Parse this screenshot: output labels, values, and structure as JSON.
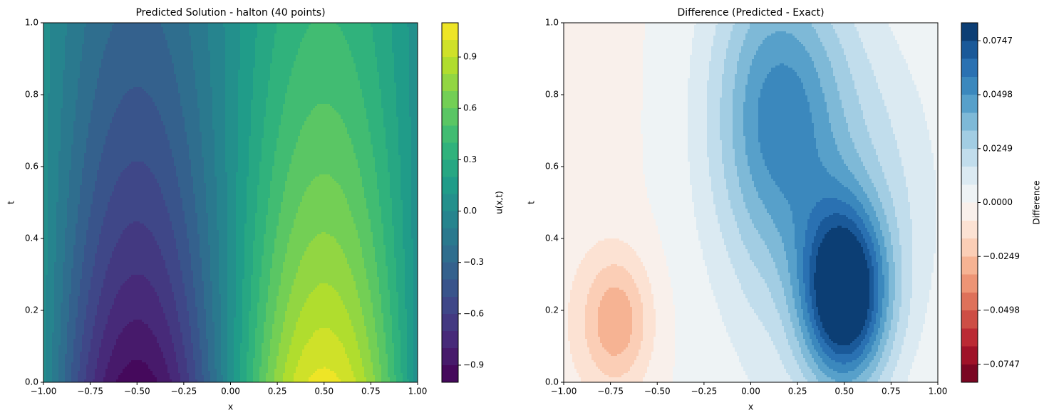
{
  "chart_data": [
    {
      "type": "contourf",
      "title": "Predicted Solution - halton (40 points)",
      "xlabel": "x",
      "ylabel": "t",
      "colorbar_label": "u(x,t)",
      "colormap": "viridis",
      "xlim": [
        -1,
        1
      ],
      "ylim": [
        0,
        1
      ],
      "xticks": [
        {
          "value": -1,
          "label": "−1.00"
        },
        {
          "value": -0.75,
          "label": "−0.75"
        },
        {
          "value": -0.5,
          "label": "−0.50"
        },
        {
          "value": -0.25,
          "label": "−0.25"
        },
        {
          "value": 0,
          "label": "0.00"
        },
        {
          "value": 0.25,
          "label": "0.25"
        },
        {
          "value": 0.5,
          "label": "0.50"
        },
        {
          "value": 0.75,
          "label": "0.75"
        },
        {
          "value": 1,
          "label": "1.00"
        }
      ],
      "yticks": [
        {
          "value": 0,
          "label": "0.0"
        },
        0.2,
        0.4,
        0.6,
        0.8,
        {
          "value": 1,
          "label": "1.0"
        }
      ],
      "levels": [
        -1.0,
        -0.9,
        -0.8,
        -0.7,
        -0.6,
        -0.5,
        -0.4,
        -0.3,
        -0.2,
        -0.1,
        0.0,
        0.1,
        0.2,
        0.3,
        0.4,
        0.5,
        0.6,
        0.7,
        0.8,
        0.9,
        1.0,
        1.1
      ],
      "cticks": [
        {
          "value": -0.9,
          "label": "−0.9"
        },
        {
          "value": -0.6,
          "label": "−0.6"
        },
        {
          "value": -0.3,
          "label": "−0.3"
        },
        {
          "value": 0,
          "label": "0.0"
        },
        0.3,
        0.6,
        0.9
      ]
    },
    {
      "type": "contourf",
      "title": "Difference (Predicted - Exact)",
      "xlabel": "x",
      "ylabel": "t",
      "colorbar_label": "Difference",
      "colormap": "RdBu",
      "xlim": [
        -1,
        1
      ],
      "ylim": [
        0,
        1
      ],
      "xticks": [
        {
          "value": -1,
          "label": "−1.00"
        },
        {
          "value": -0.75,
          "label": "−0.75"
        },
        {
          "value": -0.5,
          "label": "−0.50"
        },
        {
          "value": -0.25,
          "label": "−0.25"
        },
        {
          "value": 0,
          "label": "0.00"
        },
        {
          "value": 0.25,
          "label": "0.25"
        },
        {
          "value": 0.5,
          "label": "0.50"
        },
        {
          "value": 0.75,
          "label": "0.75"
        },
        {
          "value": 1,
          "label": "1.00"
        }
      ],
      "yticks": [
        {
          "value": 0,
          "label": "0.0"
        },
        0.2,
        0.4,
        0.6,
        0.8,
        {
          "value": 1,
          "label": "1.0"
        }
      ],
      "levels": [
        -0.083,
        -0.0747,
        -0.0664,
        -0.0581,
        -0.0498,
        -0.0415,
        -0.0332,
        -0.0249,
        -0.0166,
        -0.0083,
        0.0,
        0.0083,
        0.0166,
        0.0249,
        0.0332,
        0.0415,
        0.0498,
        0.0581,
        0.0664,
        0.0747,
        0.083
      ],
      "cticks": [
        {
          "value": -0.0747,
          "label": "−0.0747"
        },
        {
          "value": -0.0498,
          "label": "−0.0498"
        },
        {
          "value": -0.0249,
          "label": "−0.0249"
        },
        {
          "value": 0,
          "label": "0.0000"
        },
        0.0249,
        0.0498,
        0.0747
      ]
    }
  ]
}
